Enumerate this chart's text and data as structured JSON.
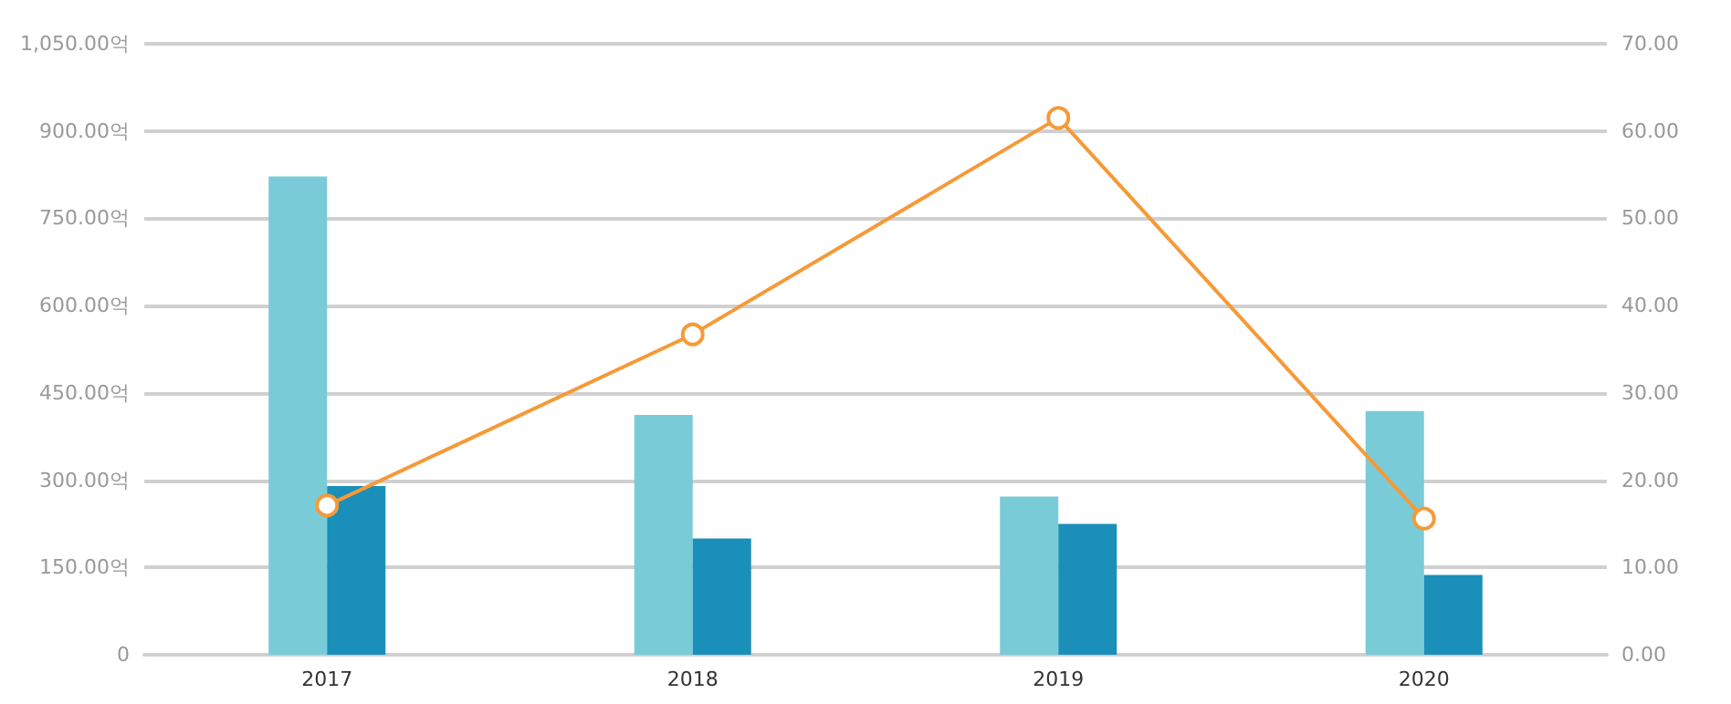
{
  "chart_data": {
    "type": "bar",
    "categories": [
      "2017",
      "2018",
      "2019",
      "2020"
    ],
    "series": [
      {
        "color": "#79ccd7",
        "values": [
          822,
          412,
          272,
          419
        ]
      },
      {
        "color": "#1a8fb9",
        "values": [
          290,
          200,
          225,
          137
        ]
      },
      {
        "type": "line",
        "axis": "y2",
        "color": "#f59a38",
        "values": [
          17.1,
          36.7,
          61.5,
          15.6
        ],
        "marker": "circle"
      }
    ],
    "ylim": [
      0,
      1050
    ],
    "yticks": [
      {
        "value": 0,
        "label": "0"
      },
      {
        "value": 150,
        "label": "150.00억"
      },
      {
        "value": 300,
        "label": "300.00억"
      },
      {
        "value": 450,
        "label": "450.00억"
      },
      {
        "value": 600,
        "label": "600.00억"
      },
      {
        "value": 750,
        "label": "750.00억"
      },
      {
        "value": 900,
        "label": "900.00억"
      },
      {
        "value": 1050,
        "label": "1,050.00억"
      }
    ],
    "y2lim": [
      0,
      70
    ],
    "y2ticks": [
      {
        "value": 0,
        "label": "0.00"
      },
      {
        "value": 10,
        "label": "10.00"
      },
      {
        "value": 20,
        "label": "20.00"
      },
      {
        "value": 30,
        "label": "30.00"
      },
      {
        "value": 40,
        "label": "40.00"
      },
      {
        "value": 50,
        "label": "50.00"
      },
      {
        "value": 60,
        "label": "60.00"
      },
      {
        "value": 70,
        "label": "70.00"
      }
    ],
    "grid": "y"
  }
}
